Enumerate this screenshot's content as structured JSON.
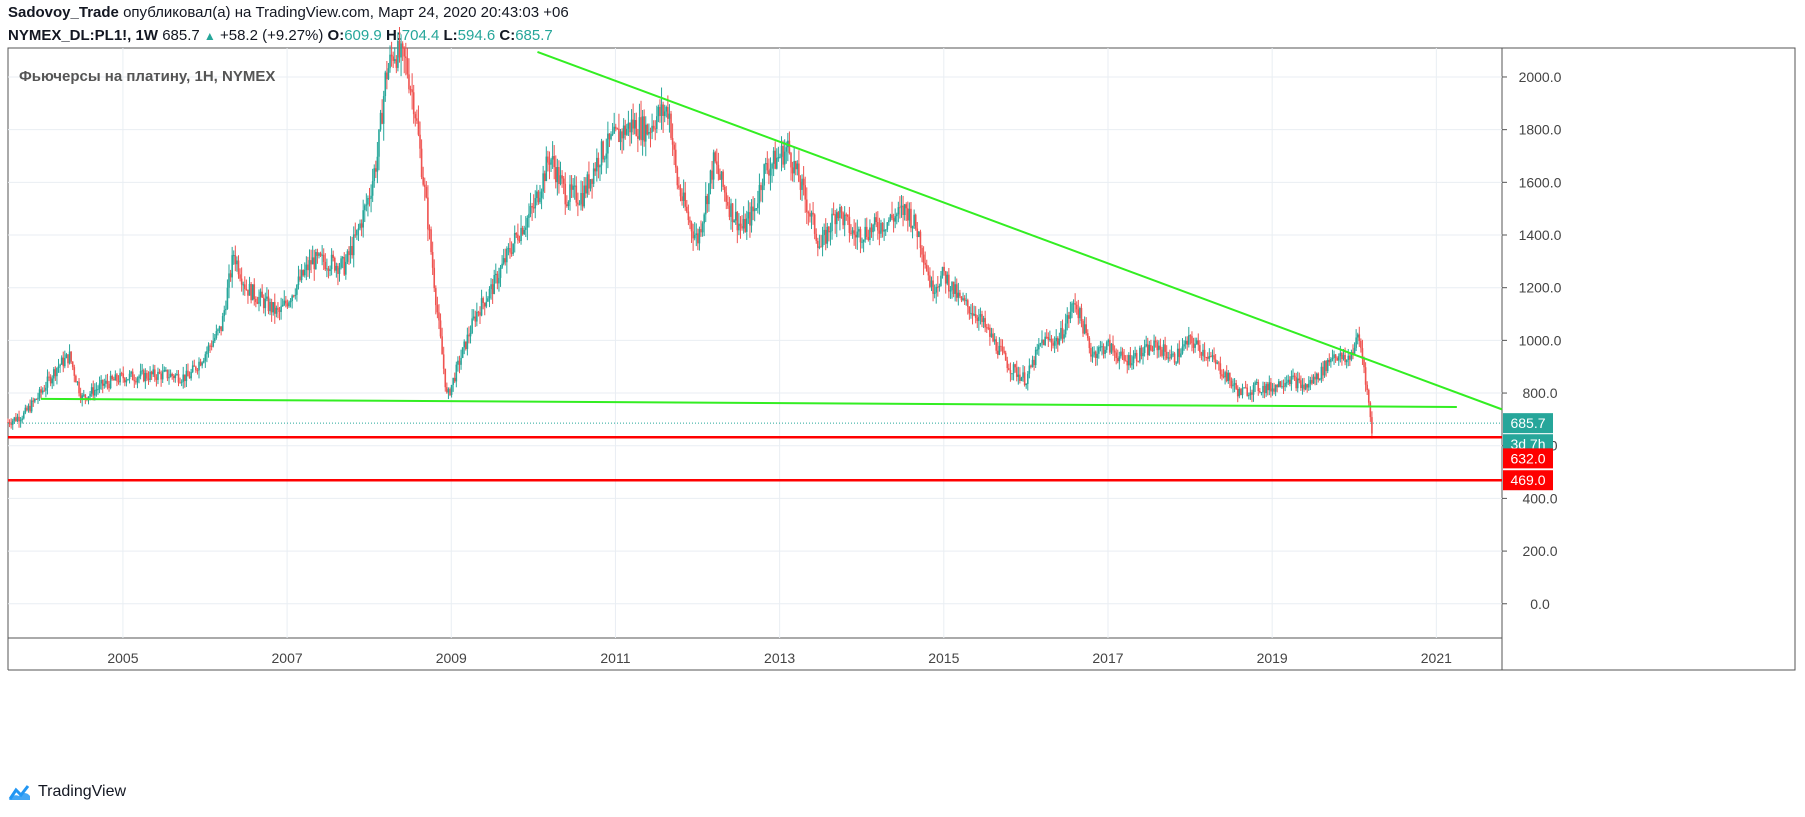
{
  "header": {
    "author": "Sadovoy_Trade",
    "published": "опубликовал(а) на TradingView.com, Март 24, 2020 20:43:03 +06",
    "symbol": "NYMEX_DL:PL1!, 1W",
    "last": "685.7",
    "change": "+58.2 (+9.27%)",
    "open_label": "O:",
    "open": "609.9",
    "high_label": "H:",
    "high": "704.4",
    "low_label": "L:",
    "low": "594.6",
    "close_label": "C:",
    "close": "685.7"
  },
  "footer": {
    "brand": "TradingView"
  },
  "colors": {
    "up": "#26a69a",
    "down": "#ef5350",
    "trend": "#33ee22",
    "level": "#ff0000",
    "grid": "#e9eef3"
  },
  "chart_data": {
    "type": "candlestick",
    "title": "Фьючерсы на платину, 1Н, NYMEX",
    "x_tick_labels": [
      "2005",
      "2007",
      "2009",
      "2011",
      "2013",
      "2015",
      "2017",
      "2019",
      "2021"
    ],
    "x_ticks": [
      2005,
      2007,
      2009,
      2011,
      2013,
      2015,
      2017,
      2019,
      2021
    ],
    "y_tick_labels": [
      "0.0",
      "200.0",
      "400.0",
      "600.0",
      "800.0",
      "1000.0",
      "1200.0",
      "1400.0",
      "1600.0",
      "1800.0",
      "2000.0"
    ],
    "y_ticks": [
      0,
      200,
      400,
      600,
      800,
      1000,
      1200,
      1400,
      1600,
      1800,
      2000
    ],
    "xlim": [
      2003.6,
      2021.8
    ],
    "ylim": [
      -130,
      2110
    ],
    "grid": true,
    "price_series": [
      [
        2003.6,
        690
      ],
      [
        2003.8,
        720
      ],
      [
        2004.0,
        800
      ],
      [
        2004.2,
        900
      ],
      [
        2004.35,
        940
      ],
      [
        2004.5,
        780
      ],
      [
        2004.75,
        830
      ],
      [
        2005.0,
        860
      ],
      [
        2005.5,
        870
      ],
      [
        2005.8,
        860
      ],
      [
        2006.0,
        950
      ],
      [
        2006.2,
        1050
      ],
      [
        2006.35,
        1330
      ],
      [
        2006.5,
        1200
      ],
      [
        2006.7,
        1150
      ],
      [
        2006.9,
        1100
      ],
      [
        2007.1,
        1200
      ],
      [
        2007.3,
        1300
      ],
      [
        2007.5,
        1300
      ],
      [
        2007.7,
        1280
      ],
      [
        2007.85,
        1400
      ],
      [
        2008.0,
        1550
      ],
      [
        2008.1,
        1700
      ],
      [
        2008.2,
        2000
      ],
      [
        2008.3,
        2100
      ],
      [
        2008.45,
        2050
      ],
      [
        2008.55,
        1900
      ],
      [
        2008.7,
        1500
      ],
      [
        2008.85,
        1050
      ],
      [
        2008.95,
        780
      ],
      [
        2009.1,
        920
      ],
      [
        2009.3,
        1100
      ],
      [
        2009.5,
        1200
      ],
      [
        2009.8,
        1400
      ],
      [
        2010.0,
        1500
      ],
      [
        2010.2,
        1700
      ],
      [
        2010.4,
        1550
      ],
      [
        2010.6,
        1550
      ],
      [
        2010.8,
        1700
      ],
      [
        2011.0,
        1770
      ],
      [
        2011.2,
        1820
      ],
      [
        2011.4,
        1800
      ],
      [
        2011.5,
        1850
      ],
      [
        2011.65,
        1880
      ],
      [
        2011.75,
        1600
      ],
      [
        2011.9,
        1450
      ],
      [
        2012.0,
        1380
      ],
      [
        2012.2,
        1680
      ],
      [
        2012.4,
        1500
      ],
      [
        2012.55,
        1420
      ],
      [
        2012.7,
        1500
      ],
      [
        2012.8,
        1640
      ],
      [
        2013.0,
        1700
      ],
      [
        2013.1,
        1730
      ],
      [
        2013.3,
        1550
      ],
      [
        2013.5,
        1350
      ],
      [
        2013.7,
        1500
      ],
      [
        2013.9,
        1400
      ],
      [
        2014.1,
        1420
      ],
      [
        2014.3,
        1450
      ],
      [
        2014.55,
        1500
      ],
      [
        2014.7,
        1400
      ],
      [
        2014.85,
        1200
      ],
      [
        2015.0,
        1250
      ],
      [
        2015.2,
        1150
      ],
      [
        2015.4,
        1100
      ],
      [
        2015.6,
        1000
      ],
      [
        2015.8,
        900
      ],
      [
        2016.0,
        850
      ],
      [
        2016.2,
        1000
      ],
      [
        2016.4,
        1000
      ],
      [
        2016.6,
        1150
      ],
      [
        2016.8,
        950
      ],
      [
        2017.0,
        980
      ],
      [
        2017.2,
        920
      ],
      [
        2017.4,
        950
      ],
      [
        2017.6,
        980
      ],
      [
        2017.8,
        930
      ],
      [
        2018.0,
        1000
      ],
      [
        2018.2,
        950
      ],
      [
        2018.4,
        880
      ],
      [
        2018.6,
        800
      ],
      [
        2018.8,
        820
      ],
      [
        2019.0,
        820
      ],
      [
        2019.2,
        860
      ],
      [
        2019.4,
        820
      ],
      [
        2019.6,
        880
      ],
      [
        2019.75,
        950
      ],
      [
        2019.9,
        920
      ],
      [
        2020.0,
        970
      ],
      [
        2020.05,
        1020
      ],
      [
        2020.12,
        900
      ],
      [
        2020.16,
        800
      ],
      [
        2020.2,
        700
      ],
      [
        2020.22,
        627
      ],
      [
        2020.23,
        685.7
      ]
    ],
    "trendlines": [
      {
        "x1": 2004.0,
        "y1": 778,
        "x2": 2021.25,
        "y2": 747
      },
      {
        "x1": 2010.05,
        "y1": 2095,
        "x2": 2021.8,
        "y2": 738
      }
    ],
    "levels": [
      632.0,
      469.0
    ],
    "last_price": 685.7,
    "price_labels": [
      "685.7",
      "3d 7h",
      "632.0",
      "469.0"
    ]
  }
}
